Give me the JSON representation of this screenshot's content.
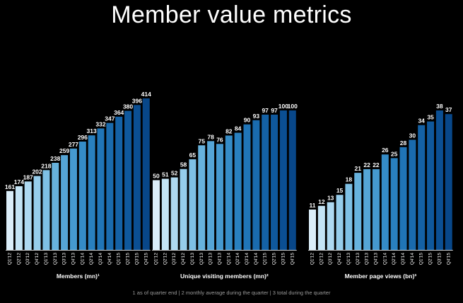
{
  "title": "Member value metrics",
  "footnote": "1 as of quarter end | 2 monthly average during the quarter | 3 total during the quarter",
  "chart_data": [
    {
      "type": "bar",
      "xlabel": "Members (mn)¹",
      "categories": [
        "Q1'12",
        "Q2'12",
        "Q3'12",
        "Q4'12",
        "Q1'13",
        "Q2'13",
        "Q3'13",
        "Q4'13",
        "Q1'14",
        "Q2'14",
        "Q3'14",
        "Q4'14",
        "Q1'15",
        "Q2'15",
        "Q3'15",
        "Q4'15"
      ],
      "values": [
        161,
        174,
        187,
        202,
        218,
        238,
        259,
        277,
        296,
        313,
        332,
        347,
        364,
        380,
        396,
        414
      ],
      "ylim": [
        0,
        414
      ]
    },
    {
      "type": "bar",
      "xlabel": "Unique visiting members (mn)²",
      "categories": [
        "Q1'12",
        "Q2'12",
        "Q3'12",
        "Q4'12",
        "Q1'13",
        "Q2'13",
        "Q3'13",
        "Q4'13",
        "Q1'14",
        "Q2'14",
        "Q3'14",
        "Q4'14",
        "Q1'15",
        "Q2'15",
        "Q3'15",
        "Q4'15"
      ],
      "values": [
        50,
        51,
        52,
        58,
        65,
        75,
        78,
        76,
        82,
        84,
        90,
        93,
        97,
        97,
        100,
        100
      ],
      "ylim": [
        0,
        100
      ]
    },
    {
      "type": "bar",
      "xlabel": "Member page views (bn)³",
      "categories": [
        "Q1'12",
        "Q2'12",
        "Q3'12",
        "Q4'12",
        "Q1'13",
        "Q2'13",
        "Q3'13",
        "Q4'13",
        "Q1'14",
        "Q2'14",
        "Q3'14",
        "Q4'14",
        "Q1'15",
        "Q2'15",
        "Q3'15",
        "Q4'15"
      ],
      "values": [
        11,
        12,
        13,
        15,
        18,
        21,
        22,
        22,
        26,
        25,
        28,
        30,
        34,
        35,
        38,
        37
      ],
      "ylim": [
        0,
        38
      ]
    }
  ]
}
